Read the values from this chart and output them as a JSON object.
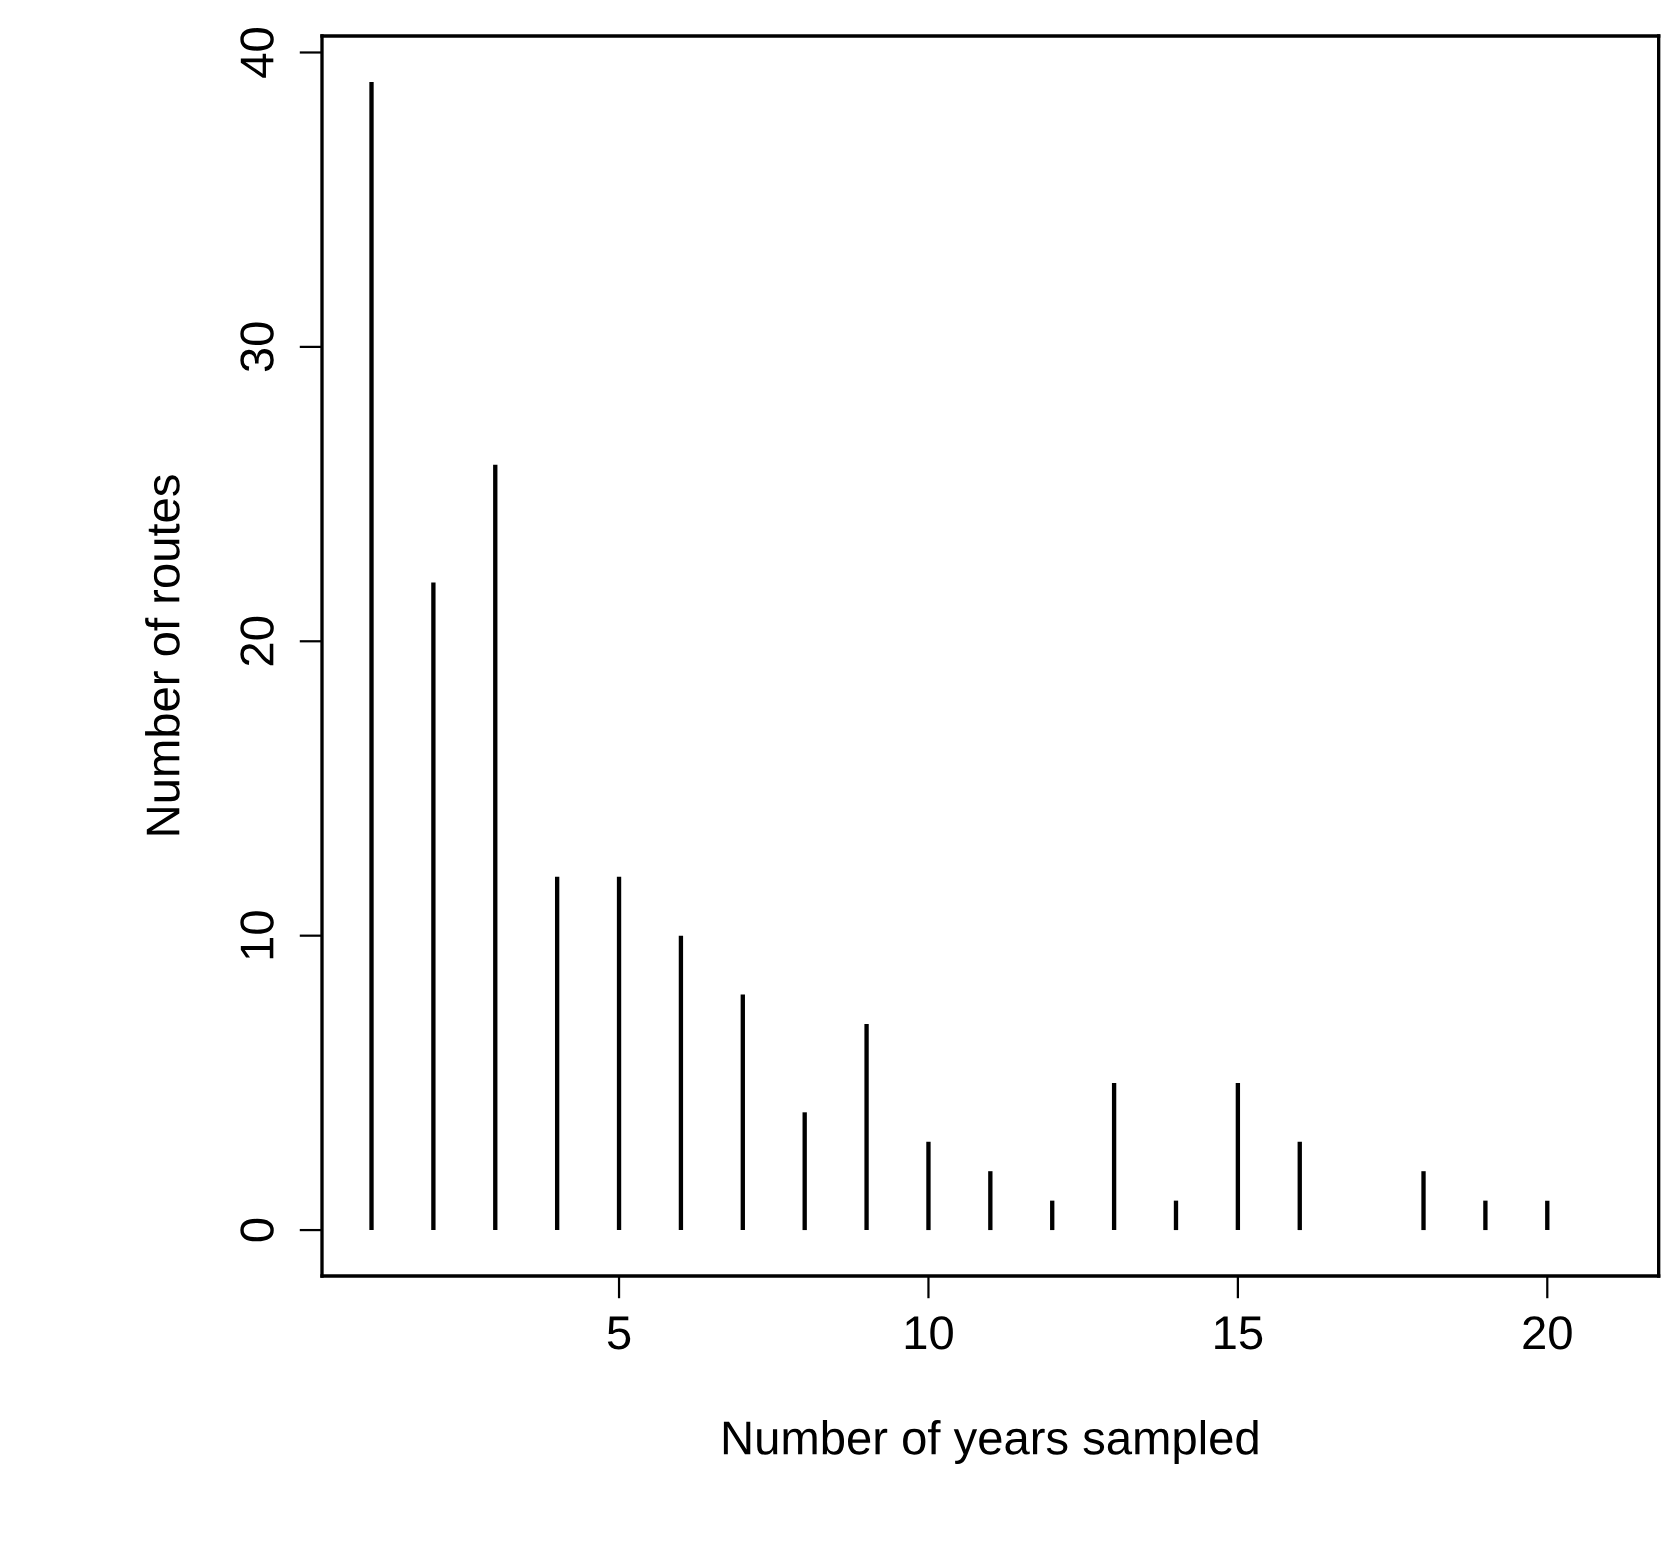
{
  "chart_data": {
    "type": "bar",
    "xlabel": "Number of years sampled",
    "ylabel": "Number of routes",
    "x": [
      1,
      2,
      3,
      4,
      5,
      6,
      7,
      8,
      9,
      10,
      11,
      12,
      13,
      14,
      15,
      16,
      17,
      18,
      19,
      20,
      21
    ],
    "values": [
      39,
      22,
      26,
      12,
      12,
      10,
      8,
      4,
      7,
      3,
      2,
      1,
      5,
      1,
      5,
      3,
      0,
      2,
      1,
      1,
      0
    ],
    "color": "#000000",
    "xlim": [
      0.2,
      21.8
    ],
    "xticks": [
      5,
      10,
      15,
      20
    ],
    "ylim": [
      -1.56,
      40.56
    ],
    "yticks": [
      0,
      10,
      20,
      30,
      40
    ],
    "grid": false
  }
}
